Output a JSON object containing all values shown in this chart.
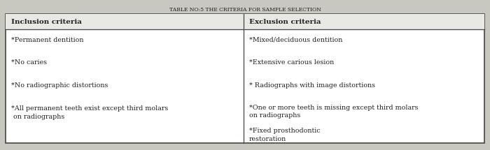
{
  "title": "TABLE NO:5 THE CRITERIA FOR SAMPLE SELECTION",
  "title_fontsize": 5.5,
  "col1_header": "Inclusion criteria",
  "col2_header": "Exclusion criteria",
  "header_fontsize": 7.5,
  "body_fontsize": 6.8,
  "col1_rows": [
    "*Permanent dentition",
    "*No caries",
    "*No radiographic distortions",
    "*All permanent teeth exist except third molars\n on radiographs"
  ],
  "col2_row1": "*Mixed/deciduous dentition",
  "col2_row2": "*Extensive carious lesion",
  "col2_row3": "* Radiographs with image distortions",
  "col2_row4": "*One or more teeth is missing except third molars\non radiographs",
  "col2_row5": "*Fixed prosthodontic\nrestoration",
  "fig_bg": "#c8c8c0",
  "table_bg": "#ffffff",
  "header_bg": "#e8e8e4",
  "border_color": "#444444",
  "text_color": "#222222"
}
